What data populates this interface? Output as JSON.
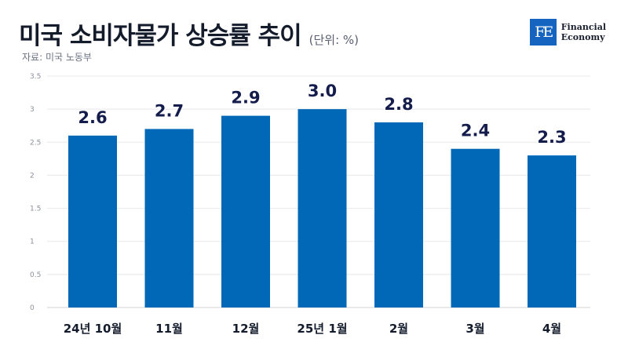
{
  "header": {
    "title": "미국 소비자물가 상승률 추이",
    "unit": "(단위: %)",
    "source": "자료: 미국 노동부"
  },
  "logo": {
    "mark": "FE",
    "line1": "Financial",
    "line2": "Economy",
    "color": "#1565c0"
  },
  "chart_data": {
    "type": "bar",
    "categories": [
      "24년 10월",
      "11월",
      "12월",
      "25년 1월",
      "2월",
      "3월",
      "4월"
    ],
    "values": [
      2.6,
      2.7,
      2.9,
      3.0,
      2.8,
      2.4,
      2.3
    ],
    "value_labels": [
      "2.6",
      "2.7",
      "2.9",
      "3.0",
      "2.8",
      "2.4",
      "2.3"
    ],
    "title": "미국 소비자물가 상승률 추이",
    "ylim": [
      0,
      3.5
    ],
    "yticks": [
      0,
      0.5,
      1,
      1.5,
      2,
      2.5,
      3,
      3.5
    ],
    "ytick_labels": [
      "0",
      "0.5",
      "1",
      "1.5",
      "2",
      "2.5",
      "3",
      "3.5"
    ],
    "grid": true,
    "bar_color": "#0068b7"
  }
}
